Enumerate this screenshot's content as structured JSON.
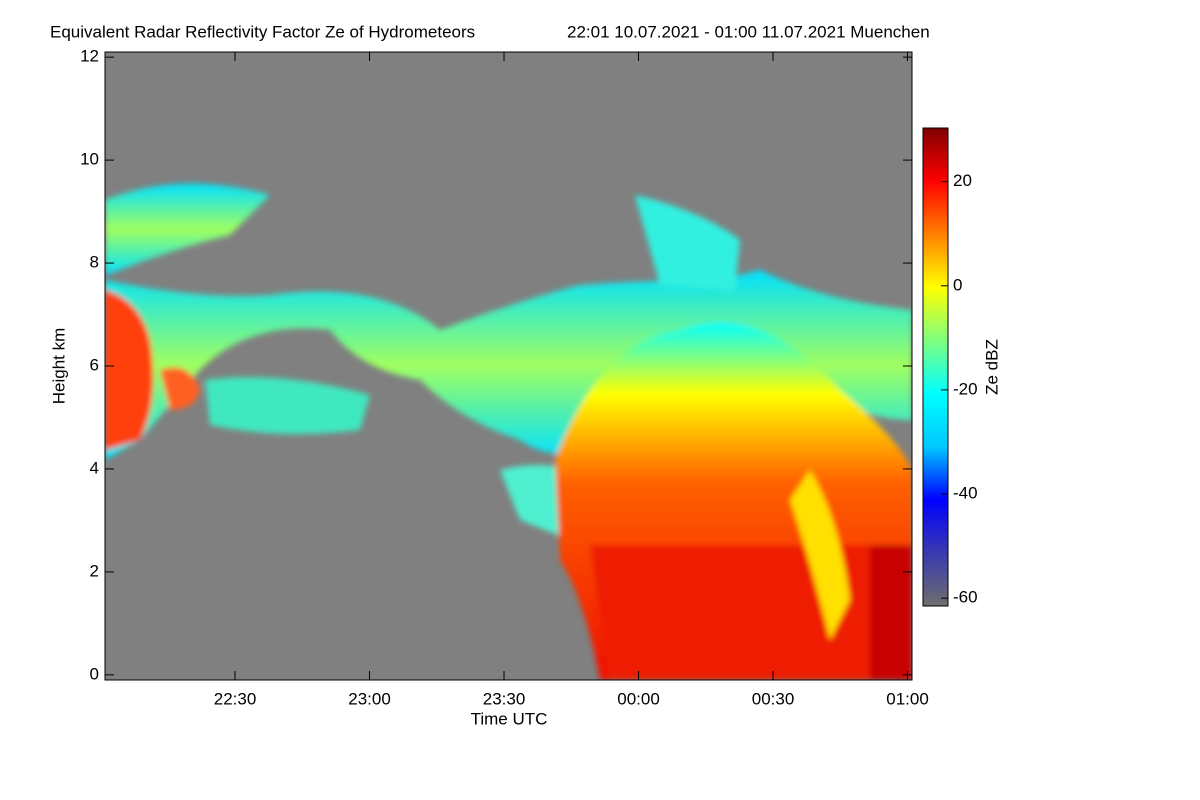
{
  "chart_data": {
    "type": "heatmap",
    "title": "Equivalent Radar Reflectivity Factor Ze of Hydrometeors",
    "subtitle": "22:01 10.07.2021 - 01:00 11.07.2021 Muenchen",
    "x_label": "Time UTC",
    "y_label": "Height km",
    "xlim": [
      1,
      181
    ],
    "xticks": [
      {
        "value": 30,
        "label": "22:30"
      },
      {
        "value": 60,
        "label": "23:00"
      },
      {
        "value": 90,
        "label": "23:30"
      },
      {
        "value": 120,
        "label": "00:00"
      },
      {
        "value": 150,
        "label": "00:30"
      },
      {
        "value": 180,
        "label": "01:00"
      }
    ],
    "ylim": [
      -0.1,
      12.1
    ],
    "yticks": [
      0,
      2,
      4,
      6,
      8,
      10,
      12
    ],
    "background_color": "#808080",
    "colorbar": {
      "label": "Ze dBZ",
      "lim": [
        -61.5,
        30.3
      ],
      "ticks": [
        -60,
        -40,
        -20,
        0,
        20
      ],
      "colormap": [
        "#6e6e6e",
        "#3a3ab0",
        "#0000ff",
        "#00c8ff",
        "#00ffff",
        "#7fff7f",
        "#ffff00",
        "#ff8000",
        "#ff0000",
        "#800000"
      ]
    }
  }
}
